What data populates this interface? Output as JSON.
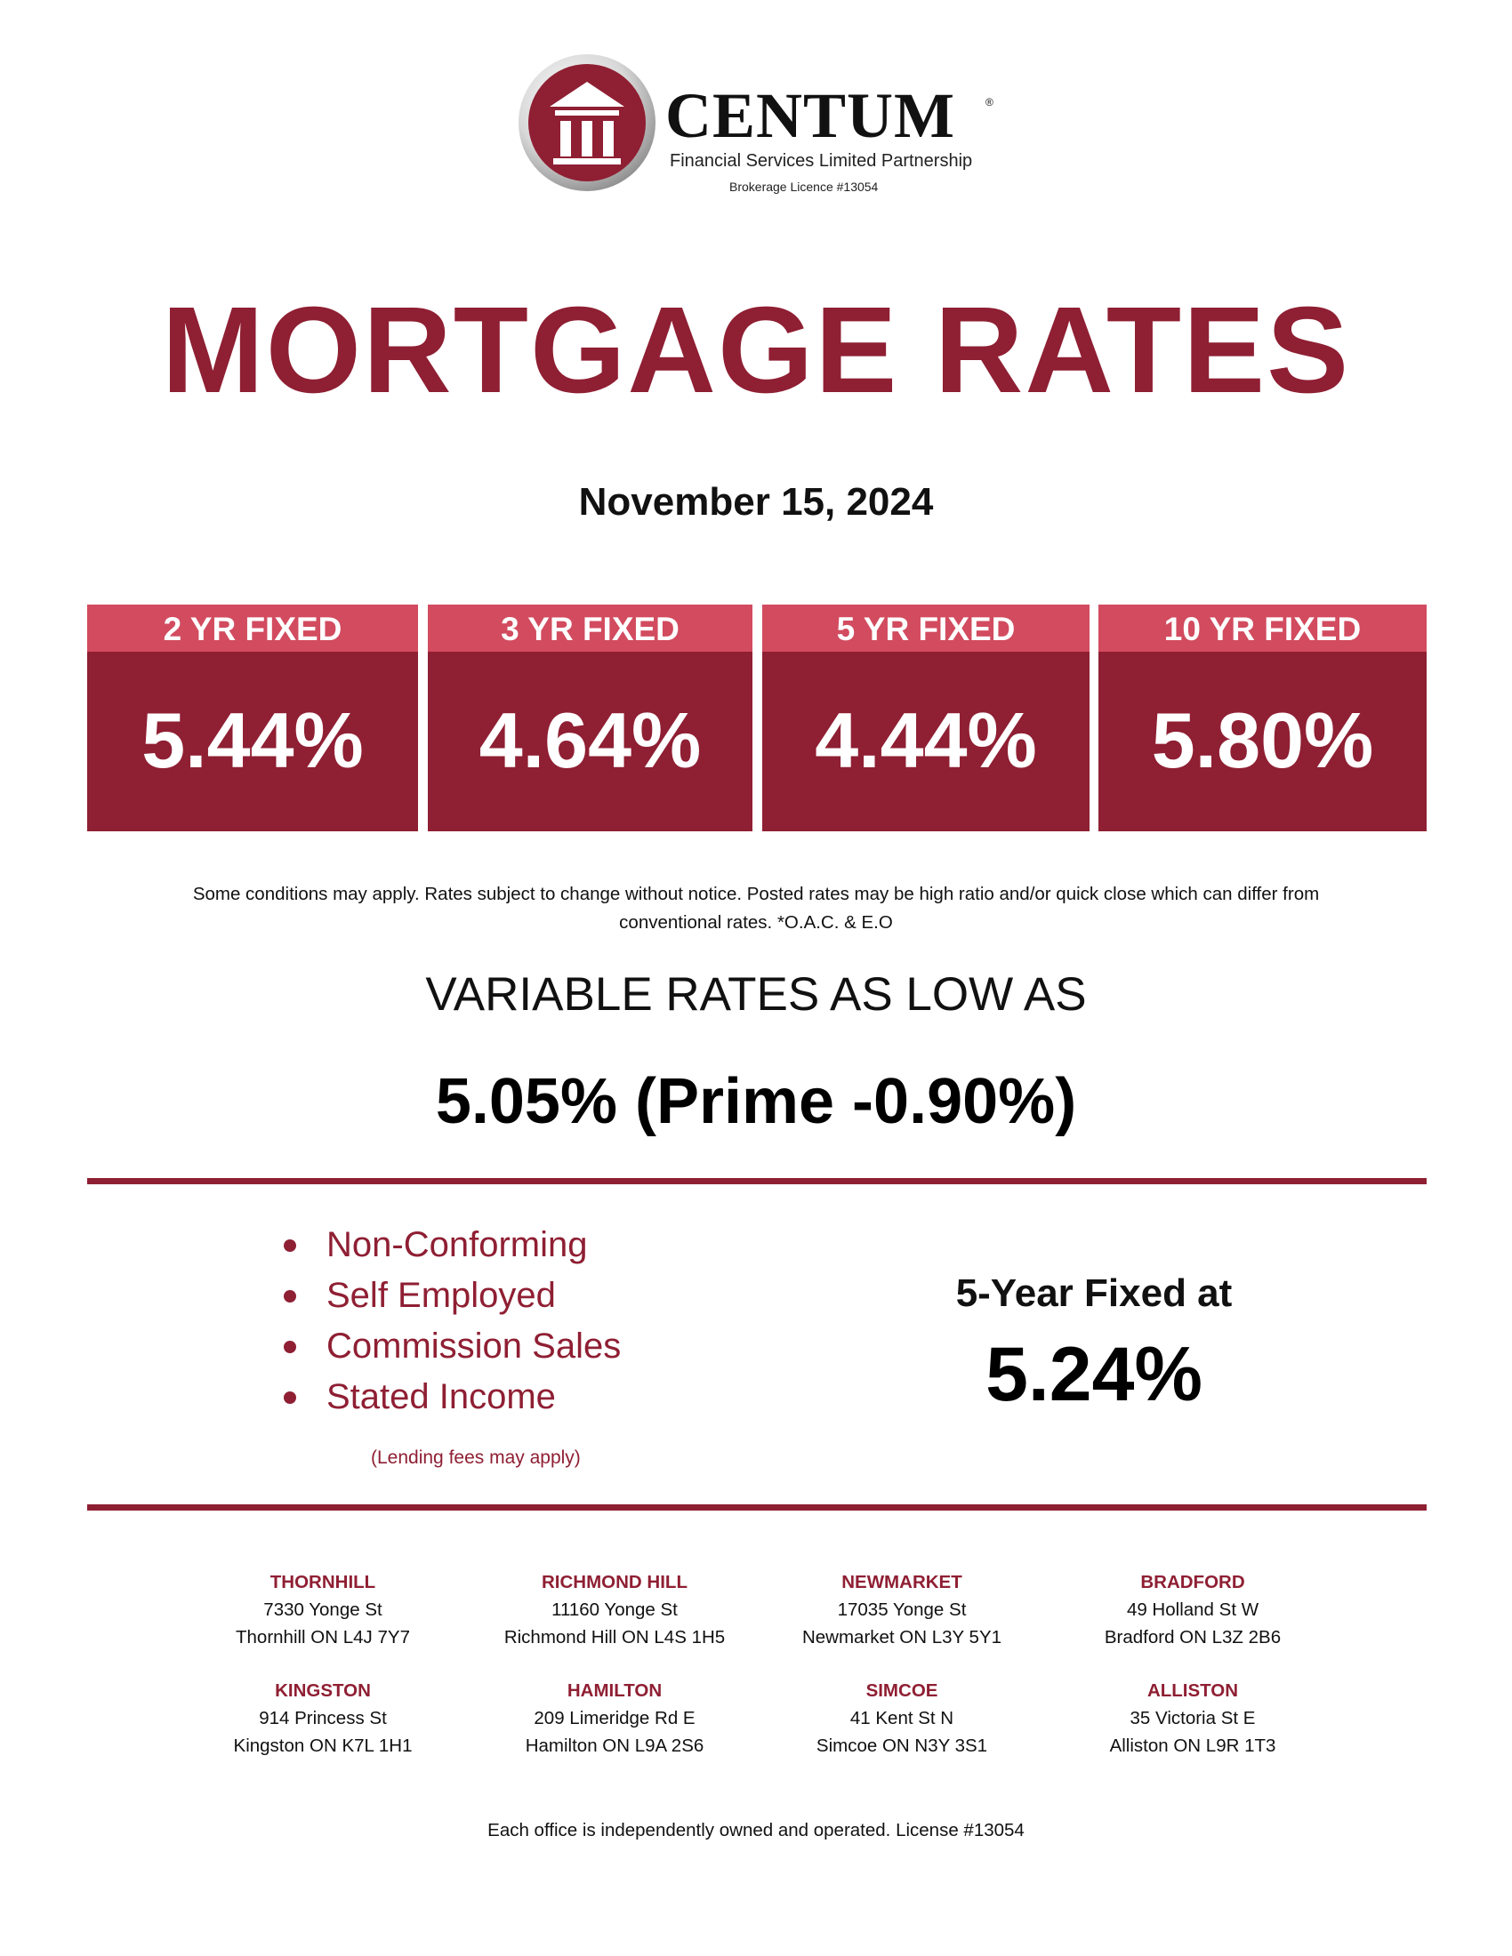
{
  "logo": {
    "wordmark": "CENTUM",
    "registered": "®",
    "subtitle": "Financial Services Limited Partnership",
    "licence": "Brokerage Licence #13054",
    "colors": {
      "ring": "#8f1f33",
      "building": "#ffffff"
    }
  },
  "title": "MORTGAGE RATES",
  "date": "November 15, 2024",
  "rates": [
    {
      "term": "2 YR FIXED",
      "value": "5.44%"
    },
    {
      "term": "3 YR FIXED",
      "value": "4.64%"
    },
    {
      "term": "5 YR FIXED",
      "value": "4.44%"
    },
    {
      "term": "10 YR FIXED",
      "value": "5.80%"
    }
  ],
  "disclaimer": {
    "line1": "Some conditions may apply. Rates subject to change without notice. Posted rates may be high ratio and/or quick close which can differ from",
    "line2": "conventional rates. *O.A.C. & E.O"
  },
  "variable": {
    "label": "VARIABLE RATES AS LOW AS",
    "value": "5.05% (Prime -0.90%)"
  },
  "special": {
    "items": [
      "Non-Conforming",
      "Self Employed",
      "Commission Sales",
      "Stated Income"
    ],
    "fees_note": "(Lending fees may apply)",
    "fixed_label": "5-Year Fixed at",
    "fixed_value": "5.24%"
  },
  "offices": [
    {
      "name": "THORNHILL",
      "street": "7330 Yonge St",
      "city": "Thornhill ON  L4J 7Y7"
    },
    {
      "name": "RICHMOND HILL",
      "street": "11160 Yonge St",
      "city": "Richmond Hill ON  L4S 1H5"
    },
    {
      "name": "NEWMARKET",
      "street": "17035 Yonge St",
      "city": "Newmarket ON  L3Y 5Y1"
    },
    {
      "name": "BRADFORD",
      "street": "49 Holland St W",
      "city": "Bradford ON  L3Z 2B6"
    },
    {
      "name": "KINGSTON",
      "street": "914 Princess St",
      "city": "Kingston ON  K7L 1H1"
    },
    {
      "name": "HAMILTON",
      "street": "209 Limeridge Rd E",
      "city": "Hamilton ON  L9A 2S6"
    },
    {
      "name": "SIMCOE",
      "street": "41 Kent St N",
      "city": "Simcoe ON  N3Y 3S1"
    },
    {
      "name": "ALLISTON",
      "street": "35 Victoria St E",
      "city": "Alliston ON L9R 1T3"
    }
  ],
  "footer": "Each office is independently owned and operated. License #13054",
  "colors": {
    "brand": "#8f1f33",
    "header_pink": "#d24b5f",
    "text": "#111111"
  }
}
